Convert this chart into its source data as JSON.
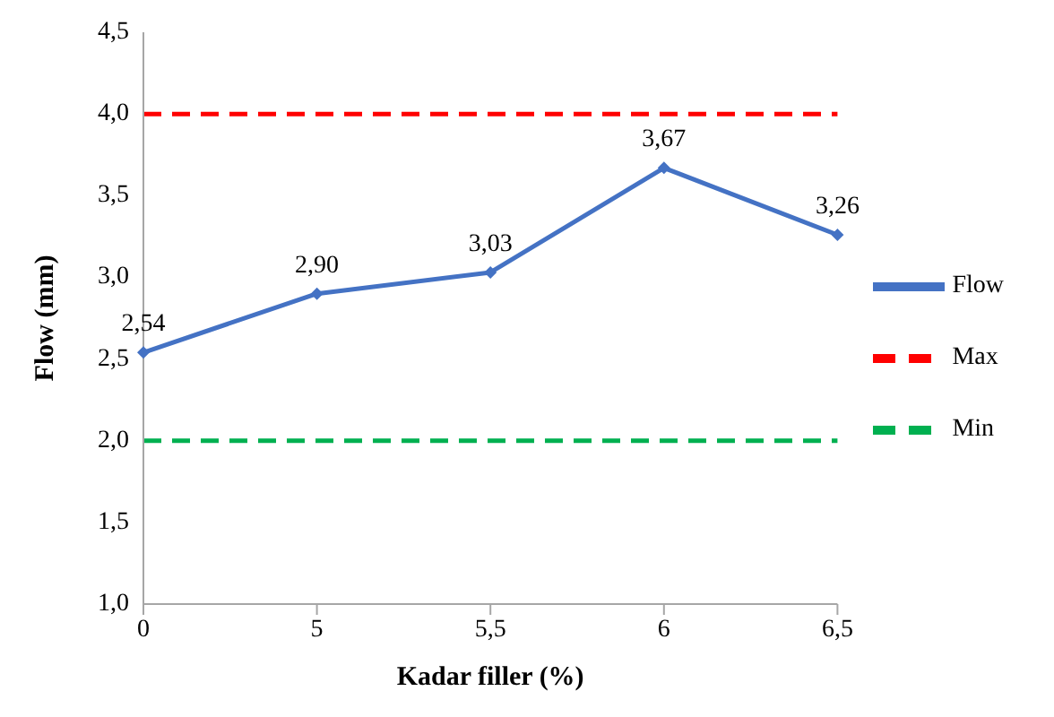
{
  "chart_data": {
    "type": "line",
    "xlabel": "Kadar filler (%)",
    "ylabel": "Flow (mm)",
    "categories": [
      "0",
      "5",
      "5,5",
      "6",
      "6,5"
    ],
    "ylim": [
      1,
      4.5
    ],
    "yticks": [
      {
        "value": 1,
        "label": "1,0"
      },
      {
        "value": 1.5,
        "label": "1,5"
      },
      {
        "value": 2,
        "label": "2,0"
      },
      {
        "value": 2.5,
        "label": "2,5"
      },
      {
        "value": 3,
        "label": "3,0"
      },
      {
        "value": 3.5,
        "label": "3,5"
      },
      {
        "value": 4,
        "label": "4,0"
      },
      {
        "value": 4.5,
        "label": "4,5"
      }
    ],
    "series": [
      {
        "name": "Flow",
        "color": "#4472c4",
        "values": [
          2.54,
          2.9,
          3.03,
          3.67,
          3.26
        ],
        "value_labels": [
          "2,54",
          "2,90",
          "3,03",
          "3,67",
          "3,26"
        ],
        "marker": "diamond",
        "line_style": "solid"
      },
      {
        "name": "Min",
        "color": "#00b050",
        "values": [
          2,
          2,
          2,
          2,
          2
        ],
        "marker": "none",
        "line_style": "dashed"
      },
      {
        "name": "Max",
        "color": "#ff0000",
        "values": [
          4,
          4,
          4,
          4,
          4
        ],
        "marker": "none",
        "line_style": "dashed"
      }
    ],
    "grid": false,
    "legend": "right"
  }
}
